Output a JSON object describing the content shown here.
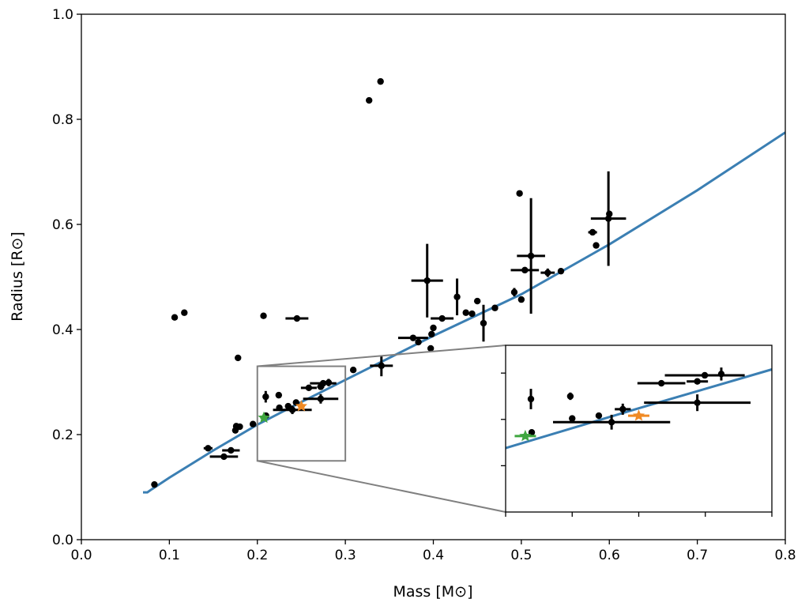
{
  "chart_data": {
    "type": "scatter",
    "title": "",
    "xlabel": "Mass [M⊙]",
    "ylabel": "Radius [R⊙]",
    "xlim": [
      0.0,
      0.8
    ],
    "ylim": [
      0.0,
      1.0
    ],
    "x_ticks": [
      0.0,
      0.1,
      0.2,
      0.3,
      0.4,
      0.5,
      0.6,
      0.7,
      0.8
    ],
    "x_tick_labels": [
      "0.0",
      "0.1",
      "0.2",
      "0.3",
      "0.4",
      "0.5",
      "0.6",
      "0.7",
      "0.8"
    ],
    "y_ticks": [
      0.0,
      0.2,
      0.4,
      0.6,
      0.8,
      1.0
    ],
    "y_tick_labels": [
      "0.0",
      "0.2",
      "0.4",
      "0.6",
      "0.8",
      "1.0"
    ],
    "grid": false,
    "colors": {
      "model": "#3b7fb3",
      "data": "#000000",
      "star_green": "#3fa63f",
      "star_orange": "#f08a24",
      "zoom_box": "#808080"
    },
    "model_curve": {
      "name": "model",
      "x": [
        0.07,
        0.075,
        0.08,
        0.1,
        0.15,
        0.2,
        0.25,
        0.3,
        0.4,
        0.5,
        0.6,
        0.7,
        0.8
      ],
      "y": [
        0.09,
        0.09,
        0.096,
        0.118,
        0.17,
        0.219,
        0.262,
        0.304,
        0.388,
        0.467,
        0.562,
        0.665,
        0.775
      ]
    },
    "points": [
      {
        "x": 0.083,
        "y": 0.105
      },
      {
        "x": 0.106,
        "y": 0.423
      },
      {
        "x": 0.117,
        "y": 0.432
      },
      {
        "x": 0.144,
        "y": 0.174,
        "xerr": 0.005
      },
      {
        "x": 0.162,
        "y": 0.158,
        "xerr": 0.016
      },
      {
        "x": 0.17,
        "y": 0.17,
        "xerr": 0.01
      },
      {
        "x": 0.175,
        "y": 0.208
      },
      {
        "x": 0.178,
        "y": 0.346
      },
      {
        "x": 0.18,
        "y": 0.215
      },
      {
        "x": 0.176,
        "y": 0.216
      },
      {
        "x": 0.195,
        "y": 0.22
      },
      {
        "x": 0.207,
        "y": 0.426
      },
      {
        "x": 0.245,
        "y": 0.421,
        "xerr": 0.013
      },
      {
        "x": 0.2098,
        "y": 0.236
      },
      {
        "x": 0.2095,
        "y": 0.272,
        "yerr": 0.011
      },
      {
        "x": 0.2243,
        "y": 0.275,
        "yerr": 0.004
      },
      {
        "x": 0.225,
        "y": 0.251
      },
      {
        "x": 0.235,
        "y": 0.254
      },
      {
        "x": 0.2398,
        "y": 0.247,
        "xerr": 0.022,
        "yerr": 0.008
      },
      {
        "x": 0.244,
        "y": 0.261,
        "xerr": 0.003,
        "yerr": 0.006
      },
      {
        "x": 0.2585,
        "y": 0.289,
        "xerr": 0.009
      },
      {
        "x": 0.272,
        "y": 0.268,
        "xerr": 0.02,
        "yerr": 0.009
      },
      {
        "x": 0.272,
        "y": 0.291,
        "xerr": 0.004
      },
      {
        "x": 0.2748,
        "y": 0.2976,
        "xerr": 0.015
      },
      {
        "x": 0.281,
        "y": 0.299,
        "yerr": 0.007
      },
      {
        "x": 0.309,
        "y": 0.323
      },
      {
        "x": 0.327,
        "y": 0.836
      },
      {
        "x": 0.34,
        "y": 0.872
      },
      {
        "x": 0.341,
        "y": 0.331,
        "xerr": 0.013,
        "yerr": 0.02
      },
      {
        "x": 0.377,
        "y": 0.384,
        "xerr": 0.017
      },
      {
        "x": 0.383,
        "y": 0.376
      },
      {
        "x": 0.393,
        "y": 0.493,
        "xerr": 0.018,
        "yerr": 0.07
      },
      {
        "x": 0.397,
        "y": 0.364
      },
      {
        "x": 0.398,
        "y": 0.391
      },
      {
        "x": 0.4,
        "y": 0.403
      },
      {
        "x": 0.41,
        "y": 0.421,
        "xerr": 0.013
      },
      {
        "x": 0.427,
        "y": 0.462,
        "yerr": 0.035
      },
      {
        "x": 0.437,
        "y": 0.432
      },
      {
        "x": 0.444,
        "y": 0.43
      },
      {
        "x": 0.45,
        "y": 0.454
      },
      {
        "x": 0.457,
        "y": 0.412,
        "yerr": 0.035
      },
      {
        "x": 0.47,
        "y": 0.441
      },
      {
        "x": 0.492,
        "y": 0.471,
        "yerr": 0.008
      },
      {
        "x": 0.498,
        "y": 0.659
      },
      {
        "x": 0.5,
        "y": 0.457
      },
      {
        "x": 0.504,
        "y": 0.513,
        "xerr": 0.016
      },
      {
        "x": 0.511,
        "y": 0.54,
        "xerr": 0.016,
        "yerr": 0.11
      },
      {
        "x": 0.53,
        "y": 0.508,
        "xerr": 0.008,
        "yerr": 0.008
      },
      {
        "x": 0.545,
        "y": 0.511
      },
      {
        "x": 0.581,
        "y": 0.585,
        "xerr": 0.005
      },
      {
        "x": 0.585,
        "y": 0.56
      },
      {
        "x": 0.599,
        "y": 0.611,
        "xerr": 0.02,
        "yerr": 0.09
      },
      {
        "x": 0.6,
        "y": 0.62
      }
    ],
    "highlight_points": [
      {
        "x": 0.2074,
        "y": 0.232,
        "xerr": 0.004,
        "color": "star_green",
        "marker": "star"
      },
      {
        "x": 0.25,
        "y": 0.254,
        "xerr": 0.004,
        "color": "star_orange",
        "marker": "star"
      }
    ],
    "inset": {
      "xlim": [
        0.2,
        0.3
      ],
      "ylim": [
        0.15,
        0.33
      ],
      "x_ticks": [
        0.2,
        0.225,
        0.25,
        0.275,
        0.3
      ],
      "y_ticks": [
        0.2,
        0.25,
        0.3
      ],
      "tick_labels_shown": false
    }
  }
}
